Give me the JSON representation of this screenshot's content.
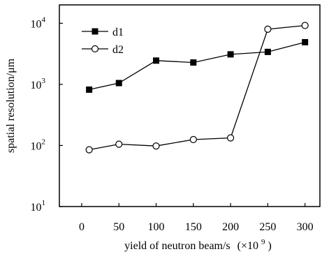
{
  "chart_data": {
    "type": "line",
    "title": "",
    "xlabel": "yield of neutron beam/s",
    "xlabel_suffix": "(×10",
    "xlabel_exp": "9",
    "xlabel_close": ")",
    "ylabel": "spatial resolution/μm",
    "xlim": [
      -30,
      320
    ],
    "ylim": [
      10,
      20000
    ],
    "yscale": "log",
    "x_ticks": [
      0,
      50,
      100,
      150,
      200,
      250,
      300
    ],
    "x_tick_labels": [
      "0",
      "50",
      "100",
      "150",
      "200",
      "250",
      "300"
    ],
    "y_ticks": [
      10,
      100,
      1000,
      10000
    ],
    "y_tick_labels": [
      {
        "base": "10",
        "exp": "1"
      },
      {
        "base": "10",
        "exp": "2"
      },
      {
        "base": "10",
        "exp": "3"
      },
      {
        "base": "10",
        "exp": "4"
      }
    ],
    "x": [
      10,
      50,
      100,
      150,
      200,
      250,
      300
    ],
    "series": [
      {
        "name": "d1",
        "marker": "filled-square",
        "values": [
          820,
          1050,
          2450,
          2280,
          3100,
          3400,
          4900
        ]
      },
      {
        "name": "d2",
        "marker": "open-circle",
        "values": [
          85,
          105,
          98,
          125,
          133,
          8000,
          9200
        ]
      }
    ],
    "legend_position": "top-left",
    "grid": false
  }
}
